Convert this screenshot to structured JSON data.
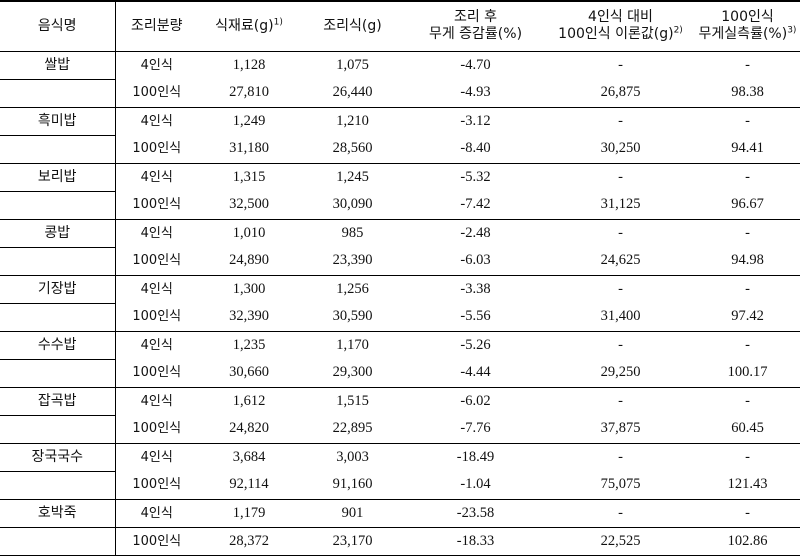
{
  "headers": {
    "food": "음식명",
    "serving": "조리분량",
    "ingredients": "식재료(g)",
    "ingredients_sup": "1)",
    "cooked": "조리식(g)",
    "change_line1": "조리 후",
    "change_line2": "무게 증감률(%)",
    "theory_line1": "4인식 대비",
    "theory_line2": "100인식 이론값(g)",
    "theory_sup": "2)",
    "loss_line1": "100인식",
    "loss_line2": "무게실측률(%)",
    "loss_sup": "3)"
  },
  "rows": [
    {
      "food": "쌀밥",
      "r4": {
        "serving": "4인식",
        "ingredients": "1,128",
        "cooked": "1,075",
        "change": "-4.70",
        "theory": "-",
        "loss": "-"
      },
      "r100": {
        "serving": "100인식",
        "ingredients": "27,810",
        "cooked": "26,440",
        "change": "-4.93",
        "theory": "26,875",
        "loss": "98.38"
      }
    },
    {
      "food": "흑미밥",
      "r4": {
        "serving": "4인식",
        "ingredients": "1,249",
        "cooked": "1,210",
        "change": "-3.12",
        "theory": "-",
        "loss": "-"
      },
      "r100": {
        "serving": "100인식",
        "ingredients": "31,180",
        "cooked": "28,560",
        "change": "-8.40",
        "theory": "30,250",
        "loss": "94.41"
      }
    },
    {
      "food": "보리밥",
      "r4": {
        "serving": "4인식",
        "ingredients": "1,315",
        "cooked": "1,245",
        "change": "-5.32",
        "theory": "-",
        "loss": "-"
      },
      "r100": {
        "serving": "100인식",
        "ingredients": "32,500",
        "cooked": "30,090",
        "change": "-7.42",
        "theory": "31,125",
        "loss": "96.67"
      }
    },
    {
      "food": "콩밥",
      "r4": {
        "serving": "4인식",
        "ingredients": "1,010",
        "cooked": "985",
        "change": "-2.48",
        "theory": "-",
        "loss": "-"
      },
      "r100": {
        "serving": "100인식",
        "ingredients": "24,890",
        "cooked": "23,390",
        "change": "-6.03",
        "theory": "24,625",
        "loss": "94.98"
      }
    },
    {
      "food": "기장밥",
      "r4": {
        "serving": "4인식",
        "ingredients": "1,300",
        "cooked": "1,256",
        "change": "-3.38",
        "theory": "-",
        "loss": "-"
      },
      "r100": {
        "serving": "100인식",
        "ingredients": "32,390",
        "cooked": "30,590",
        "change": "-5.56",
        "theory": "31,400",
        "loss": "97.42"
      }
    },
    {
      "food": "수수밥",
      "r4": {
        "serving": "4인식",
        "ingredients": "1,235",
        "cooked": "1,170",
        "change": "-5.26",
        "theory": "-",
        "loss": "-"
      },
      "r100": {
        "serving": "100인식",
        "ingredients": "30,660",
        "cooked": "29,300",
        "change": "-4.44",
        "theory": "29,250",
        "loss": "100.17"
      }
    },
    {
      "food": "잡곡밥",
      "r4": {
        "serving": "4인식",
        "ingredients": "1,612",
        "cooked": "1,515",
        "change": "-6.02",
        "theory": "-",
        "loss": "-"
      },
      "r100": {
        "serving": "100인식",
        "ingredients": "24,820",
        "cooked": "22,895",
        "change": "-7.76",
        "theory": "37,875",
        "loss": "60.45"
      }
    },
    {
      "food": "장국국수",
      "r4": {
        "serving": "4인식",
        "ingredients": "3,684",
        "cooked": "3,003",
        "change": "-18.49",
        "theory": "-",
        "loss": "-"
      },
      "r100": {
        "serving": "100인식",
        "ingredients": "92,114",
        "cooked": "91,160",
        "change": "-1.04",
        "theory": "75,075",
        "loss": "121.43"
      }
    },
    {
      "food": "호박죽",
      "r4": {
        "serving": "4인식",
        "ingredients": "1,179",
        "cooked": "901",
        "change": "-23.58",
        "theory": "-",
        "loss": "-"
      },
      "r100": {
        "serving": "100인식",
        "ingredients": "28,372",
        "cooked": "23,170",
        "change": "-18.33",
        "theory": "22,525",
        "loss": "102.86"
      }
    }
  ]
}
